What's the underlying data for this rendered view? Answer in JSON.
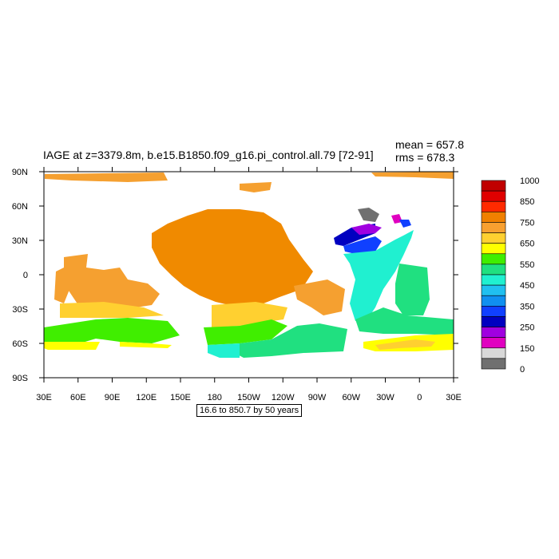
{
  "title": "IAGE at z=3379.8m, b.e15.B1850.f09_g16.pi_control.all.79 [72-91]",
  "stats": {
    "mean": "mean = 657.8",
    "rms": "rms = 678.3"
  },
  "subcaption": "16.6 to 850.7 by 50 years",
  "x_ticks": [
    "30E",
    "60E",
    "90E",
    "120E",
    "150E",
    "180",
    "150W",
    "120W",
    "90W",
    "60W",
    "30W",
    "0",
    "30E"
  ],
  "y_ticks": [
    "90N",
    "60N",
    "30N",
    "0",
    "30S",
    "60S",
    "90S"
  ],
  "colorbar": {
    "labels": [
      "1000",
      "850",
      "750",
      "650",
      "550",
      "450",
      "350",
      "250",
      "150",
      "0"
    ],
    "colors": [
      "#c00000",
      "#e00000",
      "#ff2a00",
      "#f08000",
      "#f8a030",
      "#ffd030",
      "#ffff00",
      "#40ee00",
      "#20e080",
      "#20f0d0",
      "#20c0f0",
      "#1090f0",
      "#1040ff",
      "#0000c0",
      "#a000e0",
      "#e000c0",
      "#d8d8d8",
      "#707070"
    ]
  },
  "colors": {
    "orange": "#f08a00",
    "light_orange": "#f5a030",
    "yellow_orange": "#ffd030",
    "yellow": "#ffff00",
    "green": "#40ee00",
    "sea_green": "#20e080",
    "cyan": "#20f0d0",
    "blue": "#0000c0",
    "purple": "#a000e0",
    "magenta": "#e000c0",
    "gray": "#707070"
  }
}
